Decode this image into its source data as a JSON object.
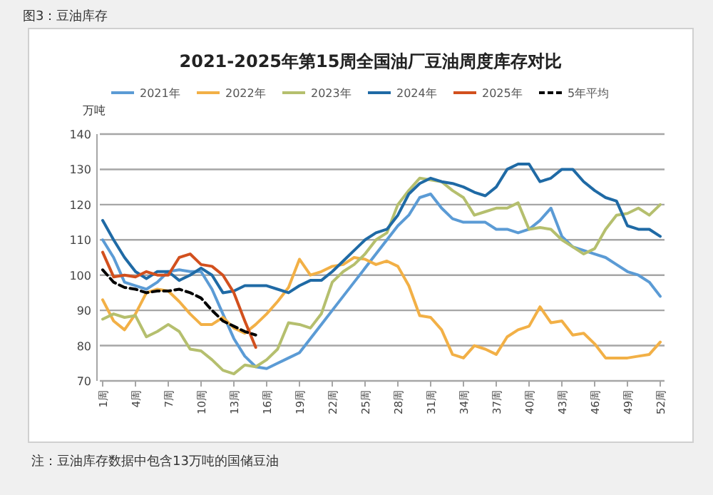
{
  "chart_data": {
    "type": "line",
    "title": "2021-2025年第15周全国油厂豆油周度库存对比",
    "ylabel": "万吨",
    "annotations": [
      "图3：豆油库存",
      "注：豆油库存数据中包含13万吨的国储豆油"
    ],
    "categories": [
      "1周",
      null,
      null,
      "4周",
      null,
      null,
      "7周",
      null,
      null,
      "10周",
      null,
      null,
      "13周",
      null,
      null,
      "16周",
      null,
      null,
      "19周",
      null,
      null,
      "22周",
      null,
      null,
      "25周",
      null,
      null,
      "28周",
      null,
      null,
      "31周",
      null,
      null,
      "34周",
      null,
      null,
      "37周",
      null,
      null,
      "40周",
      null,
      null,
      "43周",
      null,
      null,
      "46周",
      null,
      null,
      "49周",
      null,
      null,
      "52周"
    ],
    "ylim": [
      70,
      140
    ],
    "yticks": [
      70,
      80,
      90,
      100,
      110,
      120,
      130,
      140
    ],
    "grid": "y",
    "legend": "top",
    "series": [
      {
        "name": "2021年",
        "color": "#5b9bd5",
        "values": [
          110,
          105,
          98,
          97,
          96,
          98,
          101,
          101.5,
          101,
          101,
          96,
          89,
          82,
          77,
          74,
          73.5,
          75,
          76.5,
          78,
          82,
          86,
          90,
          94,
          98,
          102,
          106,
          110,
          114,
          117,
          122,
          123,
          119,
          116,
          115,
          115,
          115,
          113,
          113,
          112,
          113,
          115.5,
          119,
          111,
          108,
          107,
          106,
          105,
          103,
          101,
          100,
          98,
          94
        ]
      },
      {
        "name": "2022年",
        "color": "#f2b046",
        "values": [
          93,
          87,
          84.5,
          89,
          95,
          96,
          95.5,
          92.5,
          89,
          86,
          86,
          88,
          85,
          83.5,
          86,
          89,
          92.5,
          96.5,
          104.5,
          100,
          101,
          102.5,
          103,
          105,
          104.5,
          103,
          104,
          102.5,
          97,
          88.5,
          88,
          84.5,
          77.5,
          76.5,
          80,
          79,
          77.5,
          82.5,
          84.5,
          85.5,
          91,
          86.5,
          87,
          83,
          83.5,
          80.5,
          76.5,
          76.5,
          76.5,
          77,
          77.5,
          81
        ]
      },
      {
        "name": "2023年",
        "color": "#b5bf6e",
        "values": [
          87.5,
          89,
          88,
          88.5,
          82.5,
          84,
          86,
          84,
          79,
          78.5,
          76,
          73,
          72,
          74.5,
          74,
          76,
          79,
          86.5,
          86,
          85,
          89,
          98,
          101,
          103,
          106,
          110,
          112,
          120,
          124,
          127.5,
          127,
          126.5,
          124,
          122,
          117,
          118,
          119,
          119,
          120.5,
          113,
          113.5,
          113,
          110,
          108,
          106,
          107.5,
          113,
          117,
          117.5,
          119,
          117,
          120
        ]
      },
      {
        "name": "2024年",
        "color": "#1f6aa5",
        "values": [
          115.5,
          110,
          105,
          101,
          99,
          101,
          101,
          98.5,
          100,
          102,
          100,
          95,
          95.5,
          97,
          97,
          97,
          96,
          95,
          97,
          98.5,
          98.5,
          101,
          104,
          107,
          110,
          112,
          113,
          117,
          123,
          126,
          127.5,
          126.5,
          126,
          125,
          123.5,
          122.5,
          125,
          130,
          131.5,
          131.5,
          126.5,
          127.5,
          130,
          130,
          126.5,
          124,
          122,
          121,
          114,
          113,
          113,
          111
        ]
      },
      {
        "name": "2025年",
        "color": "#d2501e",
        "values": [
          106.5,
          99.5,
          100,
          99.5,
          101,
          100,
          100,
          105,
          106,
          103,
          102.5,
          100,
          95,
          87,
          79.5,
          null,
          null,
          null,
          null,
          null,
          null,
          null,
          null,
          null,
          null,
          null,
          null,
          null,
          null,
          null,
          null,
          null,
          null,
          null,
          null,
          null,
          null,
          null,
          null,
          null,
          null,
          null,
          null,
          null,
          null,
          null,
          null,
          null,
          null,
          null,
          null,
          null
        ]
      },
      {
        "name": "5年平均",
        "color": "#000000",
        "line_style": "dashed",
        "values": [
          101.5,
          98,
          96.5,
          96,
          95,
          95.5,
          95.5,
          96,
          95,
          93.5,
          90,
          87,
          85.5,
          84,
          83,
          null,
          null,
          null,
          null,
          null,
          null,
          null,
          null,
          null,
          null,
          null,
          null,
          null,
          null,
          null,
          null,
          null,
          null,
          null,
          null,
          null,
          null,
          null,
          null,
          null,
          null,
          null,
          null,
          null,
          null,
          null,
          null,
          null,
          null,
          null,
          null,
          null
        ]
      }
    ]
  }
}
